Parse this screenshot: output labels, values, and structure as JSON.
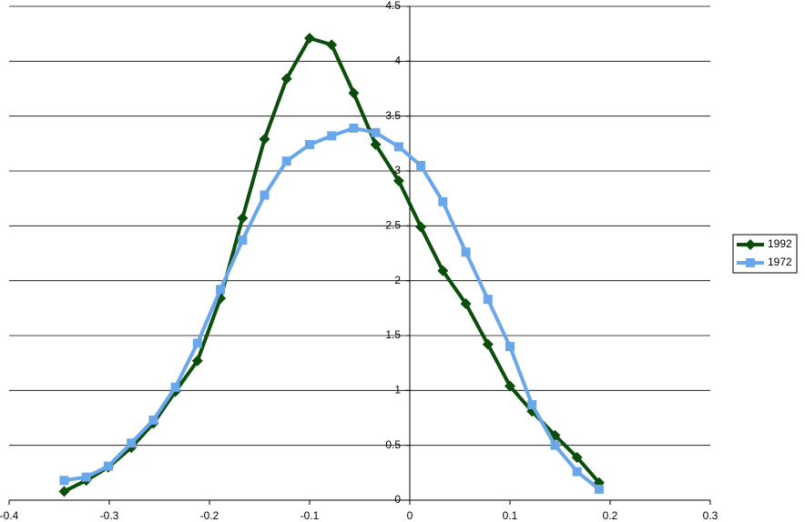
{
  "chart_data": {
    "type": "line",
    "x": [
      -0.345,
      -0.323,
      -0.301,
      -0.278,
      -0.256,
      -0.234,
      -0.212,
      -0.189,
      -0.167,
      -0.145,
      -0.123,
      -0.1,
      -0.078,
      -0.056,
      -0.034,
      -0.011,
      0.011,
      0.033,
      0.056,
      0.078,
      0.1,
      0.122,
      0.145,
      0.167,
      0.189
    ],
    "series": [
      {
        "name": "1992",
        "color": "#0b4d0b",
        "marker": "diamond",
        "values": [
          0.08,
          0.18,
          0.3,
          0.48,
          0.7,
          0.99,
          1.27,
          1.84,
          2.57,
          3.29,
          3.84,
          4.21,
          4.15,
          3.71,
          3.24,
          2.91,
          2.49,
          2.09,
          1.79,
          1.42,
          1.04,
          0.81,
          0.59,
          0.39,
          0.16
        ]
      },
      {
        "name": "1972",
        "color": "#6aa6ea",
        "marker": "square",
        "values": [
          0.18,
          0.21,
          0.31,
          0.52,
          0.73,
          1.03,
          1.43,
          1.92,
          2.37,
          2.78,
          3.09,
          3.24,
          3.32,
          3.39,
          3.35,
          3.22,
          3.05,
          2.72,
          2.26,
          1.83,
          1.4,
          0.87,
          0.5,
          0.26,
          0.1
        ]
      }
    ],
    "xlim": [
      -0.4,
      0.3
    ],
    "xticks": [
      -0.4,
      -0.3,
      -0.2,
      -0.1,
      0,
      0.1,
      0.2,
      0.3
    ],
    "ylim": [
      0,
      4.5
    ],
    "yticks": [
      0,
      0.5,
      1,
      1.5,
      2,
      2.5,
      3,
      3.5,
      4,
      4.5
    ],
    "grid": true,
    "legend": "right"
  }
}
